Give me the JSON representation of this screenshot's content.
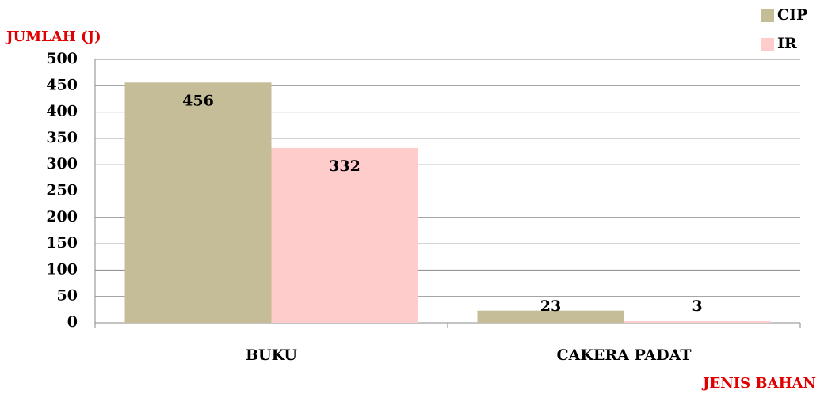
{
  "chart_data": {
    "type": "bar",
    "y_label": "JUMLAH (J)",
    "x_label": "JENIS BAHAN",
    "categories": [
      "BUKU",
      "CAKERA PADAT"
    ],
    "series": [
      {
        "name": "CIP",
        "color": "#c4bd97",
        "values": [
          456,
          23
        ]
      },
      {
        "name": "IR",
        "color": "#ffcccc",
        "values": [
          332,
          3
        ]
      }
    ],
    "ylim": [
      0,
      500
    ],
    "yticks": [
      0,
      50,
      100,
      150,
      200,
      250,
      300,
      350,
      400,
      450,
      500
    ],
    "grid": true,
    "legend": "top-right"
  }
}
